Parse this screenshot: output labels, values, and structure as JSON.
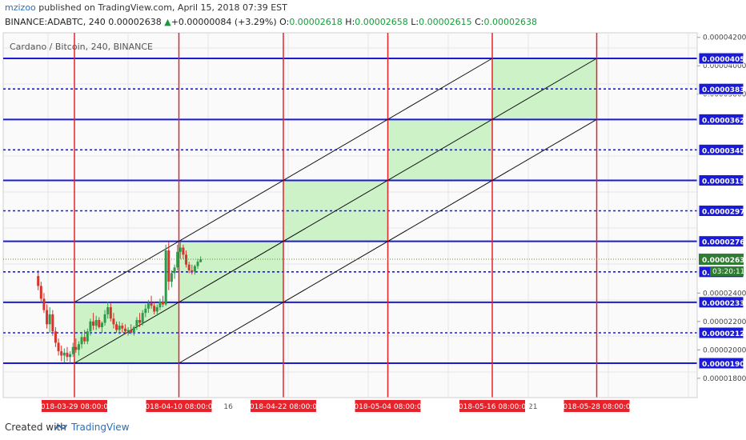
{
  "header": {
    "user": "mzizoo",
    "published": "published on TradingView.com, April 15, 2018 07:39 EST",
    "symbol": "BINANCE:ADABTC, 240",
    "last": "0.00002638",
    "arrow": "▲",
    "change": "+0.00000084 (+3.29%)",
    "o_label": "O:",
    "o_value": "0.00002618",
    "h_label": "H:",
    "h_value": "0.00002658",
    "l_label": "L:",
    "l_value": "0.00002615",
    "c_label": "C:",
    "c_value": "0.00002638"
  },
  "footer": {
    "created_with": "Created with",
    "brand": "TradingView"
  },
  "chart_data": {
    "type": "candlestick",
    "title": "Cardano / Bitcoin, 240, BINANCE",
    "ylim": [
      1.7e-05,
      4.25e-05
    ],
    "y_ticks": [
      1.8e-05,
      2e-05,
      2.2e-05,
      2.4e-05,
      3.8e-05,
      4e-05,
      4.2e-05
    ],
    "y_tick_labels": [
      "0.00001800",
      "0.00002000",
      "0.00002200",
      "0.00002400",
      "0.00003800",
      "0.00004000",
      "0.00004200"
    ],
    "x_ticks": [
      {
        "label": "16",
        "date": "2018-04-16"
      },
      {
        "label": "21",
        "date": "2018-05-21"
      }
    ],
    "current_price": {
      "value": 2.638e-05,
      "label": "0.00002638",
      "countdown": "03:20:11"
    },
    "levels": [
      {
        "value": 4.052e-05,
        "label": "0.00004052",
        "style": "solid"
      },
      {
        "value": 3.837e-05,
        "label": "0.00003837",
        "style": "dotted"
      },
      {
        "value": 3.622e-05,
        "label": "0.00003622",
        "style": "solid"
      },
      {
        "value": 3.408e-05,
        "label": "0.00003408",
        "style": "dotted"
      },
      {
        "value": 3.193e-05,
        "label": "0.00003193",
        "style": "solid"
      },
      {
        "value": 2.979e-05,
        "label": "0.00002979",
        "style": "dotted"
      },
      {
        "value": 2.764e-05,
        "label": "0.00002764",
        "style": "solid"
      },
      {
        "value": 2.549e-05,
        "label": "0.00002549",
        "style": "dotted"
      },
      {
        "value": 2.335e-05,
        "label": "0.00002335",
        "style": "solid"
      },
      {
        "value": 2.12e-05,
        "label": "0.00002120",
        "style": "dotted"
      },
      {
        "value": 1.906e-05,
        "label": "0.00001906",
        "style": "solid"
      }
    ],
    "time_lines": [
      {
        "date": "2018-03-29 08:00",
        "label": "2018-03-29 08:00:00"
      },
      {
        "date": "2018-04-10 08:00",
        "label": "2018-04-10 08:00:00"
      },
      {
        "date": "2018-04-22 08:00",
        "label": "2018-04-22 08:00:00"
      },
      {
        "date": "2018-05-04 08:00",
        "label": "2018-05-04 08:00:00"
      },
      {
        "date": "2018-05-16 08:00",
        "label": "2018-05-16 08:00:00"
      },
      {
        "date": "2018-05-28 08:00",
        "label": "2018-05-28 08:00:00"
      }
    ],
    "boxes": [
      {
        "from": "2018-03-29 08:00",
        "to": "2018-04-10 08:00",
        "low": 1.906e-05,
        "high": 2.335e-05
      },
      {
        "from": "2018-04-10 08:00",
        "to": "2018-04-22 08:00",
        "low": 2.335e-05,
        "high": 2.764e-05
      },
      {
        "from": "2018-04-22 08:00",
        "to": "2018-05-04 08:00",
        "low": 2.764e-05,
        "high": 3.193e-05
      },
      {
        "from": "2018-05-04 08:00",
        "to": "2018-05-16 08:00",
        "low": 3.193e-05,
        "high": 3.622e-05
      },
      {
        "from": "2018-05-16 08:00",
        "to": "2018-05-28 08:00",
        "low": 3.622e-05,
        "high": 4.052e-05
      }
    ],
    "channel_lines": [
      {
        "start": [
          "2018-03-29 08:00",
          1.906e-05
        ],
        "end": [
          "2018-05-28 08:00",
          4.052e-05
        ]
      },
      {
        "start": [
          "2018-03-29 08:00",
          2.335e-05
        ],
        "end": [
          "2018-05-16 08:00",
          4.052e-05
        ]
      },
      {
        "start": [
          "2018-04-10 08:00",
          1.906e-05
        ],
        "end": [
          "2018-05-28 08:00",
          3.622e-05
        ]
      }
    ],
    "candles": [
      {
        "t": "2018-03-25 04:00",
        "o": 2.52e-05,
        "h": 2.56e-05,
        "l": 2.42e-05,
        "c": 2.45e-05
      },
      {
        "t": "2018-03-25 12:00",
        "o": 2.45e-05,
        "h": 2.48e-05,
        "l": 2.33e-05,
        "c": 2.36e-05
      },
      {
        "t": "2018-03-25 20:00",
        "o": 2.36e-05,
        "h": 2.4e-05,
        "l": 2.26e-05,
        "c": 2.28e-05
      },
      {
        "t": "2018-03-26 04:00",
        "o": 2.28e-05,
        "h": 2.32e-05,
        "l": 2.15e-05,
        "c": 2.18e-05
      },
      {
        "t": "2018-03-26 12:00",
        "o": 2.18e-05,
        "h": 2.3e-05,
        "l": 2.12e-05,
        "c": 2.25e-05
      },
      {
        "t": "2018-03-26 20:00",
        "o": 2.25e-05,
        "h": 2.28e-05,
        "l": 2.1e-05,
        "c": 2.13e-05
      },
      {
        "t": "2018-03-27 04:00",
        "o": 2.13e-05,
        "h": 2.16e-05,
        "l": 2.02e-05,
        "c": 2.05e-05
      },
      {
        "t": "2018-03-27 12:00",
        "o": 2.05e-05,
        "h": 2.08e-05,
        "l": 1.96e-05,
        "c": 1.99e-05
      },
      {
        "t": "2018-03-27 20:00",
        "o": 1.99e-05,
        "h": 2.03e-05,
        "l": 1.92e-05,
        "c": 1.96e-05
      },
      {
        "t": "2018-03-28 04:00",
        "o": 1.96e-05,
        "h": 2.01e-05,
        "l": 1.91e-05,
        "c": 1.98e-05
      },
      {
        "t": "2018-03-28 12:00",
        "o": 1.98e-05,
        "h": 2.02e-05,
        "l": 1.92e-05,
        "c": 1.95e-05
      },
      {
        "t": "2018-03-28 20:00",
        "o": 1.95e-05,
        "h": 1.99e-05,
        "l": 1.906e-05,
        "c": 1.97e-05
      },
      {
        "t": "2018-03-29 04:00",
        "o": 1.97e-05,
        "h": 2.05e-05,
        "l": 1.95e-05,
        "c": 2.02e-05
      },
      {
        "t": "2018-03-29 12:00",
        "o": 2.02e-05,
        "h": 2.08e-05,
        "l": 1.98e-05,
        "c": 2e-05
      },
      {
        "t": "2018-03-29 20:00",
        "o": 2e-05,
        "h": 2.06e-05,
        "l": 1.96e-05,
        "c": 2.04e-05
      },
      {
        "t": "2018-03-30 04:00",
        "o": 2.04e-05,
        "h": 2.12e-05,
        "l": 2.01e-05,
        "c": 2.09e-05
      },
      {
        "t": "2018-03-30 12:00",
        "o": 2.09e-05,
        "h": 2.14e-05,
        "l": 2.04e-05,
        "c": 2.06e-05
      },
      {
        "t": "2018-03-30 20:00",
        "o": 2.06e-05,
        "h": 2.15e-05,
        "l": 2.04e-05,
        "c": 2.13e-05
      },
      {
        "t": "2018-03-31 04:00",
        "o": 2.13e-05,
        "h": 2.22e-05,
        "l": 2.1e-05,
        "c": 2.2e-05
      },
      {
        "t": "2018-03-31 12:00",
        "o": 2.2e-05,
        "h": 2.26e-05,
        "l": 2.14e-05,
        "c": 2.17e-05
      },
      {
        "t": "2018-03-31 20:00",
        "o": 2.17e-05,
        "h": 2.24e-05,
        "l": 2.14e-05,
        "c": 2.21e-05
      },
      {
        "t": "2018-04-01 04:00",
        "o": 2.21e-05,
        "h": 2.23e-05,
        "l": 2.15e-05,
        "c": 2.16e-05
      },
      {
        "t": "2018-04-01 12:00",
        "o": 2.16e-05,
        "h": 2.2e-05,
        "l": 2.12e-05,
        "c": 2.19e-05
      },
      {
        "t": "2018-04-01 20:00",
        "o": 2.19e-05,
        "h": 2.28e-05,
        "l": 2.17e-05,
        "c": 2.25e-05
      },
      {
        "t": "2018-04-02 04:00",
        "o": 2.25e-05,
        "h": 2.34e-05,
        "l": 2.22e-05,
        "c": 2.3e-05
      },
      {
        "t": "2018-04-02 12:00",
        "o": 2.3e-05,
        "h": 2.33e-05,
        "l": 2.2e-05,
        "c": 2.22e-05
      },
      {
        "t": "2018-04-02 20:00",
        "o": 2.22e-05,
        "h": 2.26e-05,
        "l": 2.15e-05,
        "c": 2.18e-05
      },
      {
        "t": "2018-04-03 04:00",
        "o": 2.18e-05,
        "h": 2.2e-05,
        "l": 2.12e-05,
        "c": 2.14e-05
      },
      {
        "t": "2018-04-03 12:00",
        "o": 2.14e-05,
        "h": 2.2e-05,
        "l": 2.11e-05,
        "c": 2.17e-05
      },
      {
        "t": "2018-04-03 20:00",
        "o": 2.17e-05,
        "h": 2.19e-05,
        "l": 2.12e-05,
        "c": 2.15e-05
      },
      {
        "t": "2018-04-04 04:00",
        "o": 2.15e-05,
        "h": 2.18e-05,
        "l": 2.11e-05,
        "c": 2.13e-05
      },
      {
        "t": "2018-04-04 12:00",
        "o": 2.13e-05,
        "h": 2.16e-05,
        "l": 2.1e-05,
        "c": 2.14e-05
      },
      {
        "t": "2018-04-04 20:00",
        "o": 2.14e-05,
        "h": 2.18e-05,
        "l": 2.11e-05,
        "c": 2.12e-05
      },
      {
        "t": "2018-04-05 04:00",
        "o": 2.12e-05,
        "h": 2.17e-05,
        "l": 2.1e-05,
        "c": 2.16e-05
      },
      {
        "t": "2018-04-05 12:00",
        "o": 2.16e-05,
        "h": 2.23e-05,
        "l": 2.14e-05,
        "c": 2.21e-05
      },
      {
        "t": "2018-04-05 20:00",
        "o": 2.21e-05,
        "h": 2.26e-05,
        "l": 2.16e-05,
        "c": 2.19e-05
      },
      {
        "t": "2018-04-06 04:00",
        "o": 2.19e-05,
        "h": 2.28e-05,
        "l": 2.17e-05,
        "c": 2.26e-05
      },
      {
        "t": "2018-04-06 12:00",
        "o": 2.26e-05,
        "h": 2.32e-05,
        "l": 2.23e-05,
        "c": 2.29e-05
      },
      {
        "t": "2018-04-06 20:00",
        "o": 2.29e-05,
        "h": 2.35e-05,
        "l": 2.26e-05,
        "c": 2.33e-05
      },
      {
        "t": "2018-04-07 04:00",
        "o": 2.33e-05,
        "h": 2.38e-05,
        "l": 2.29e-05,
        "c": 2.31e-05
      },
      {
        "t": "2018-04-07 12:00",
        "o": 2.31e-05,
        "h": 2.34e-05,
        "l": 2.25e-05,
        "c": 2.27e-05
      },
      {
        "t": "2018-04-07 20:00",
        "o": 2.27e-05,
        "h": 2.32e-05,
        "l": 2.24e-05,
        "c": 2.3e-05
      },
      {
        "t": "2018-04-08 04:00",
        "o": 2.3e-05,
        "h": 2.36e-05,
        "l": 2.28e-05,
        "c": 2.34e-05
      },
      {
        "t": "2018-04-08 12:00",
        "o": 2.34e-05,
        "h": 2.38e-05,
        "l": 2.3e-05,
        "c": 2.32e-05
      },
      {
        "t": "2018-04-08 20:00",
        "o": 2.32e-05,
        "h": 2.74e-05,
        "l": 2.31e-05,
        "c": 2.7e-05
      },
      {
        "t": "2018-04-09 04:00",
        "o": 2.7e-05,
        "h": 2.76e-05,
        "l": 2.42e-05,
        "c": 2.48e-05
      },
      {
        "t": "2018-04-09 12:00",
        "o": 2.48e-05,
        "h": 2.56e-05,
        "l": 2.44e-05,
        "c": 2.54e-05
      },
      {
        "t": "2018-04-09 20:00",
        "o": 2.54e-05,
        "h": 2.6e-05,
        "l": 2.5e-05,
        "c": 2.58e-05
      },
      {
        "t": "2018-04-10 04:00",
        "o": 2.58e-05,
        "h": 2.74e-05,
        "l": 2.56e-05,
        "c": 2.69e-05
      },
      {
        "t": "2018-04-10 12:00",
        "o": 2.69e-05,
        "h": 2.76e-05,
        "l": 2.64e-05,
        "c": 2.72e-05
      },
      {
        "t": "2018-04-10 20:00",
        "o": 2.72e-05,
        "h": 2.74e-05,
        "l": 2.64e-05,
        "c": 2.67e-05
      },
      {
        "t": "2018-04-11 04:00",
        "o": 2.67e-05,
        "h": 2.7e-05,
        "l": 2.58e-05,
        "c": 2.6e-05
      },
      {
        "t": "2018-04-11 12:00",
        "o": 2.6e-05,
        "h": 2.62e-05,
        "l": 2.54e-05,
        "c": 2.56e-05
      },
      {
        "t": "2018-04-11 20:00",
        "o": 2.56e-05,
        "h": 2.6e-05,
        "l": 2.53e-05,
        "c": 2.55e-05
      },
      {
        "t": "2018-04-12 04:00",
        "o": 2.55e-05,
        "h": 2.6e-05,
        "l": 2.53e-05,
        "c": 2.59e-05
      },
      {
        "t": "2018-04-12 12:00",
        "o": 2.59e-05,
        "h": 2.64e-05,
        "l": 2.57e-05,
        "c": 2.62e-05
      },
      {
        "t": "2018-04-12 20:00",
        "o": 2.618e-05,
        "h": 2.658e-05,
        "l": 2.615e-05,
        "c": 2.638e-05
      }
    ]
  },
  "colors": {
    "grid": "#e6e6e6",
    "level": "#1b1bd6",
    "time_line": "#e8222a",
    "box_fill": "#cdf2c8",
    "box_border": "#8ac98a",
    "up": "#2e9b4a",
    "down": "#d9342b",
    "channel": "#111111",
    "label_bg": "#1b1bd6",
    "time_label_bg": "#e8222a",
    "price_tag": "#2e7d32"
  }
}
